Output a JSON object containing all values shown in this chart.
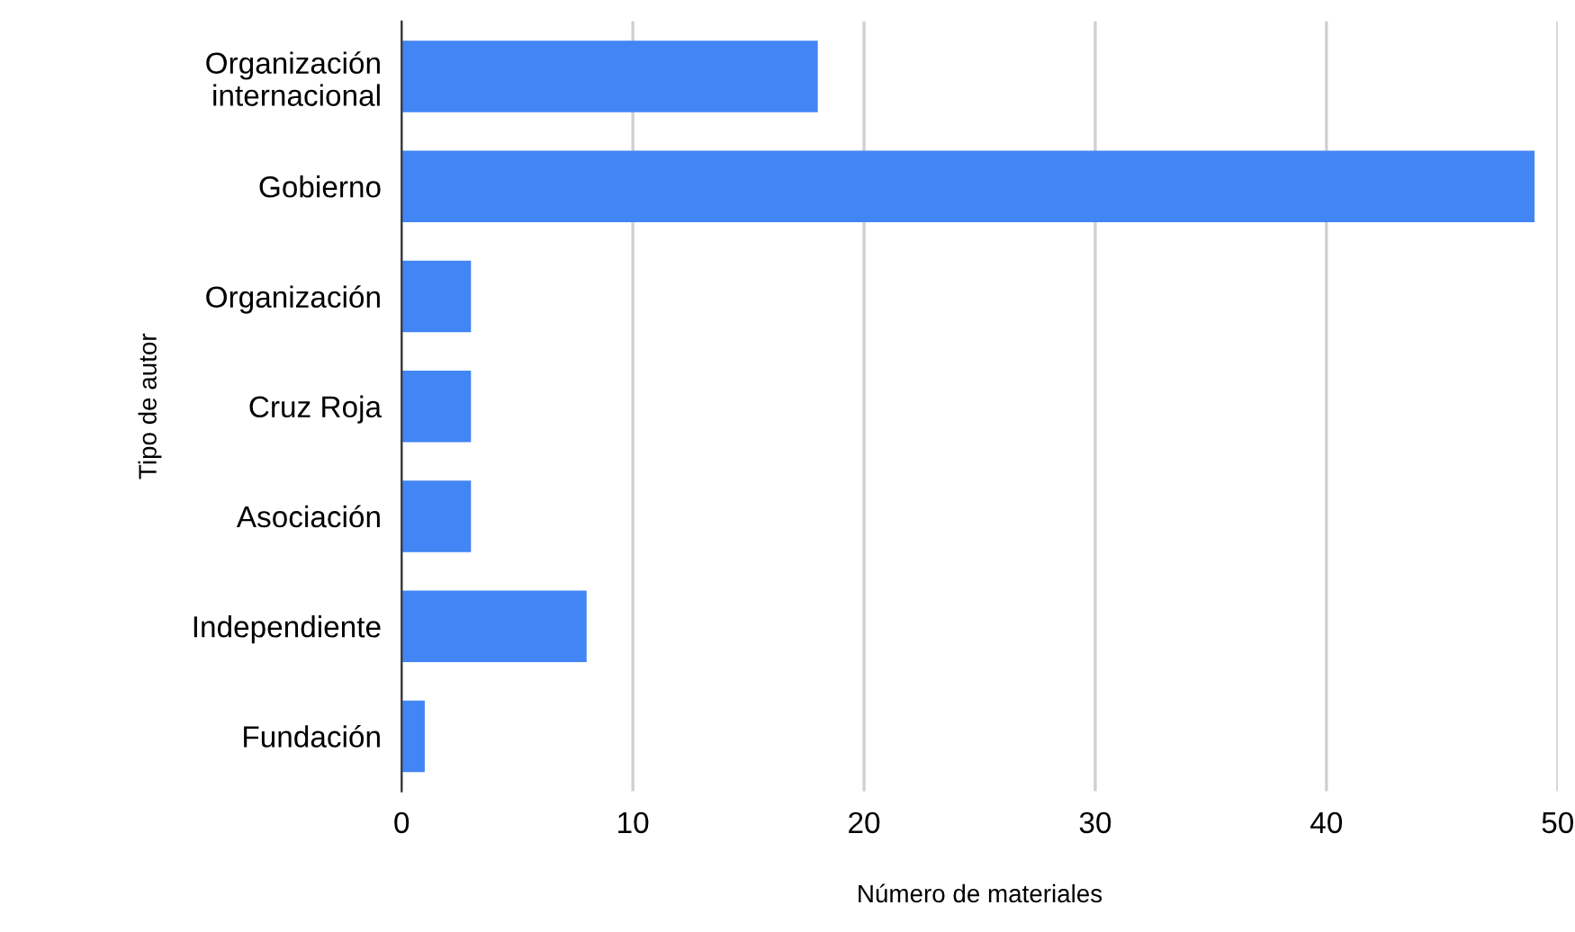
{
  "chart_data": {
    "type": "bar",
    "orientation": "horizontal",
    "categories": [
      "Organización\ninternacional",
      "Gobierno",
      "Organización",
      "Cruz Roja",
      "Asociación",
      "Independiente",
      "Fundación"
    ],
    "values": [
      18,
      49,
      3,
      3,
      3,
      8,
      1
    ],
    "color": "#4285f4",
    "xlabel": "Número de materiales",
    "ylabel": "Tipo de autor",
    "xlim": [
      0,
      50
    ],
    "xticks": [
      0,
      10,
      20,
      30,
      40,
      50
    ],
    "grid": "x",
    "legend": false
  }
}
